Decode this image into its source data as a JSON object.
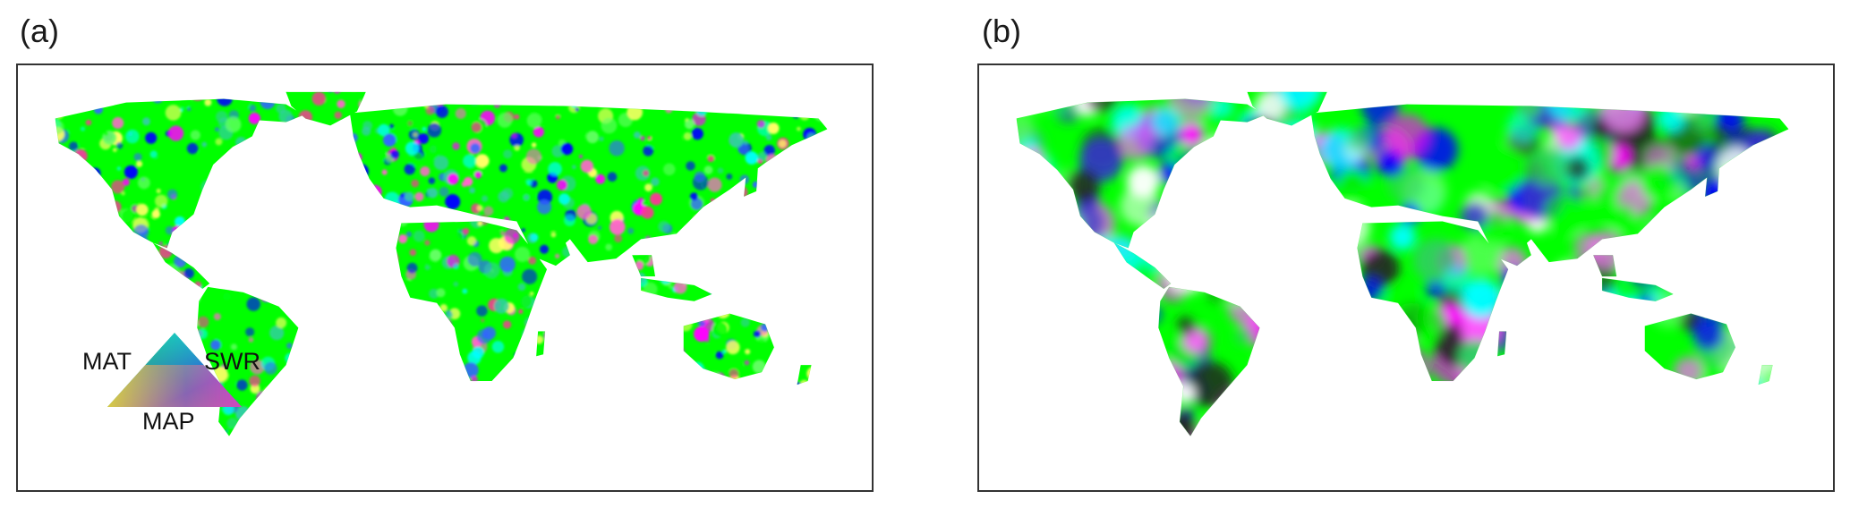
{
  "panels": [
    {
      "label": "(a)",
      "style": "speckled"
    },
    {
      "label": "(b)",
      "style": "smooth"
    }
  ],
  "legend": {
    "top_left_label": "MAT",
    "top_right_label": "SWR",
    "bottom_label": "MAP",
    "colors": [
      "#00ffff",
      "#00c800",
      "#ffff00",
      "#ff00ff",
      "#0000ff"
    ]
  },
  "colors": {
    "frame": "#333333",
    "palette_a": [
      "#ff00ff",
      "#00ff00",
      "#00ffff",
      "#0000ff",
      "#ff66cc",
      "#66ff66",
      "#ff3399",
      "#3366ff",
      "#ffff66",
      "#33ccaa"
    ],
    "palette_b": [
      "#ff00ff",
      "#00ff00",
      "#00ffff",
      "#0000ff",
      "#ff66ff",
      "#66ff66",
      "#222222",
      "#3333cc",
      "#ffffff",
      "#33cc66"
    ]
  }
}
